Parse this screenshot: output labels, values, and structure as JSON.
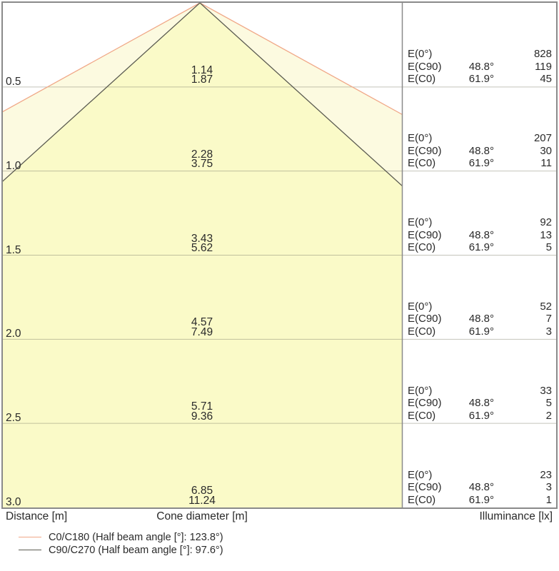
{
  "chart_data": {
    "type": "cone-diagram",
    "description": "Light cone / illuminance diagram with two beam cones over distance",
    "xlabel_left": "Distance [m]",
    "xlabel_center": "Cone diameter [m]",
    "xlabel_right": "Illuminance [lx]",
    "max_distance_m": 3.0,
    "beams": [
      {
        "id": "C0/C180",
        "half_beam_angle_deg": 123.8,
        "color": "#F0A888",
        "label": "C0/C180 (Half beam angle [°]: 123.8°)"
      },
      {
        "id": "C90/C270",
        "half_beam_angle_deg": 97.6,
        "color": "#5C5C52",
        "label": "C90/C270 (Half beam angle [°]: 97.6°)"
      }
    ],
    "e_labels": {
      "e0": "E(0°)",
      "ec90": "E(C90)",
      "ec0": "E(C0)"
    },
    "angles": {
      "ec90": "48.8°",
      "ec0": "61.9°"
    },
    "rows": [
      {
        "distance": "0.5",
        "cone_d_c90": "1.14",
        "cone_d_c0": "1.87",
        "e0": "828",
        "ec90": "119",
        "ec0": "45"
      },
      {
        "distance": "1.0",
        "cone_d_c90": "2.28",
        "cone_d_c0": "3.75",
        "e0": "207",
        "ec90": "30",
        "ec0": "11"
      },
      {
        "distance": "1.5",
        "cone_d_c90": "3.43",
        "cone_d_c0": "5.62",
        "e0": "92",
        "ec90": "13",
        "ec0": "5"
      },
      {
        "distance": "2.0",
        "cone_d_c90": "4.57",
        "cone_d_c0": "7.49",
        "e0": "52",
        "ec90": "7",
        "ec0": "3"
      },
      {
        "distance": "2.5",
        "cone_d_c90": "5.71",
        "cone_d_c0": "9.36",
        "e0": "33",
        "ec90": "5",
        "ec0": "2"
      },
      {
        "distance": "3.0",
        "cone_d_c90": "6.85",
        "cone_d_c0": "11.24",
        "e0": "23",
        "ec90": "3",
        "ec0": "1"
      }
    ]
  },
  "colors": {
    "outer_fill": "#FCFAE0",
    "inner_fill": "#FAFAC8",
    "row_line": "rgba(125,125,105,0.45)",
    "border": "#8A8A8A",
    "background": "#FFFFFF",
    "text": "#2A2A2A"
  }
}
